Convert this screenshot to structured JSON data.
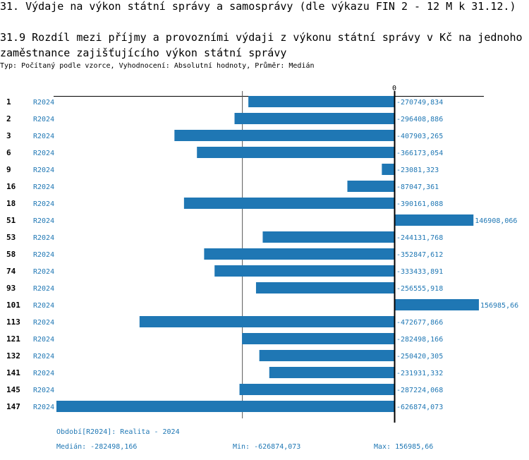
{
  "header": {
    "title": "31. Výdaje na výkon státní správy a samosprávy (dle výkazu FIN 2 - 12 M k 31.12.)",
    "subtitle": "31.9 Rozdíl mezi příjmy a provozními výdaji z výkonu státní správy v Kč na jednoho zaměstnance zajišťujícího výkon státní správy",
    "info": "Typ: Počítaný podle vzorce, Vyhodnocení: Absolutní hodnoty, Průměr: Medián"
  },
  "chart_data": {
    "type": "bar",
    "orientation": "horizontal",
    "zero_label": "0",
    "bar_color": "#1f77b4",
    "categories": [
      "1",
      "2",
      "3",
      "6",
      "9",
      "16",
      "18",
      "51",
      "53",
      "58",
      "74",
      "93",
      "101",
      "113",
      "121",
      "132",
      "141",
      "145",
      "147"
    ],
    "series_label": "R2024",
    "values": [
      -270749.834,
      -296408.886,
      -407903.265,
      -366173.054,
      -23081.323,
      -87047.361,
      -390161.088,
      146908.066,
      -244131.768,
      -352847.612,
      -333433.891,
      -256555.918,
      156985.66,
      -472677.866,
      -282498.166,
      -250420.305,
      -231931.332,
      -287224.068,
      -626874.073
    ],
    "value_labels": [
      "-270749,834",
      "-296408,886",
      "-407903,265",
      "-366173,054",
      "-23081,323",
      "-87047,361",
      "-390161,088",
      "146908,066",
      "-244131,768",
      "-352847,612",
      "-333433,891",
      "-256555,918",
      "156985,66",
      "-472677,866",
      "-282498,166",
      "-250420,305",
      "-231931,332",
      "-287224,068",
      "-626874,073"
    ],
    "median": -282498.166,
    "xlim": [
      -626874.073,
      156985.66
    ]
  },
  "footer": {
    "period": "Období[R2024]: Realita - 2024",
    "median": "Medián: -282498,166",
    "min": "Min: -626874,073",
    "max": "Max: 156985,66"
  }
}
